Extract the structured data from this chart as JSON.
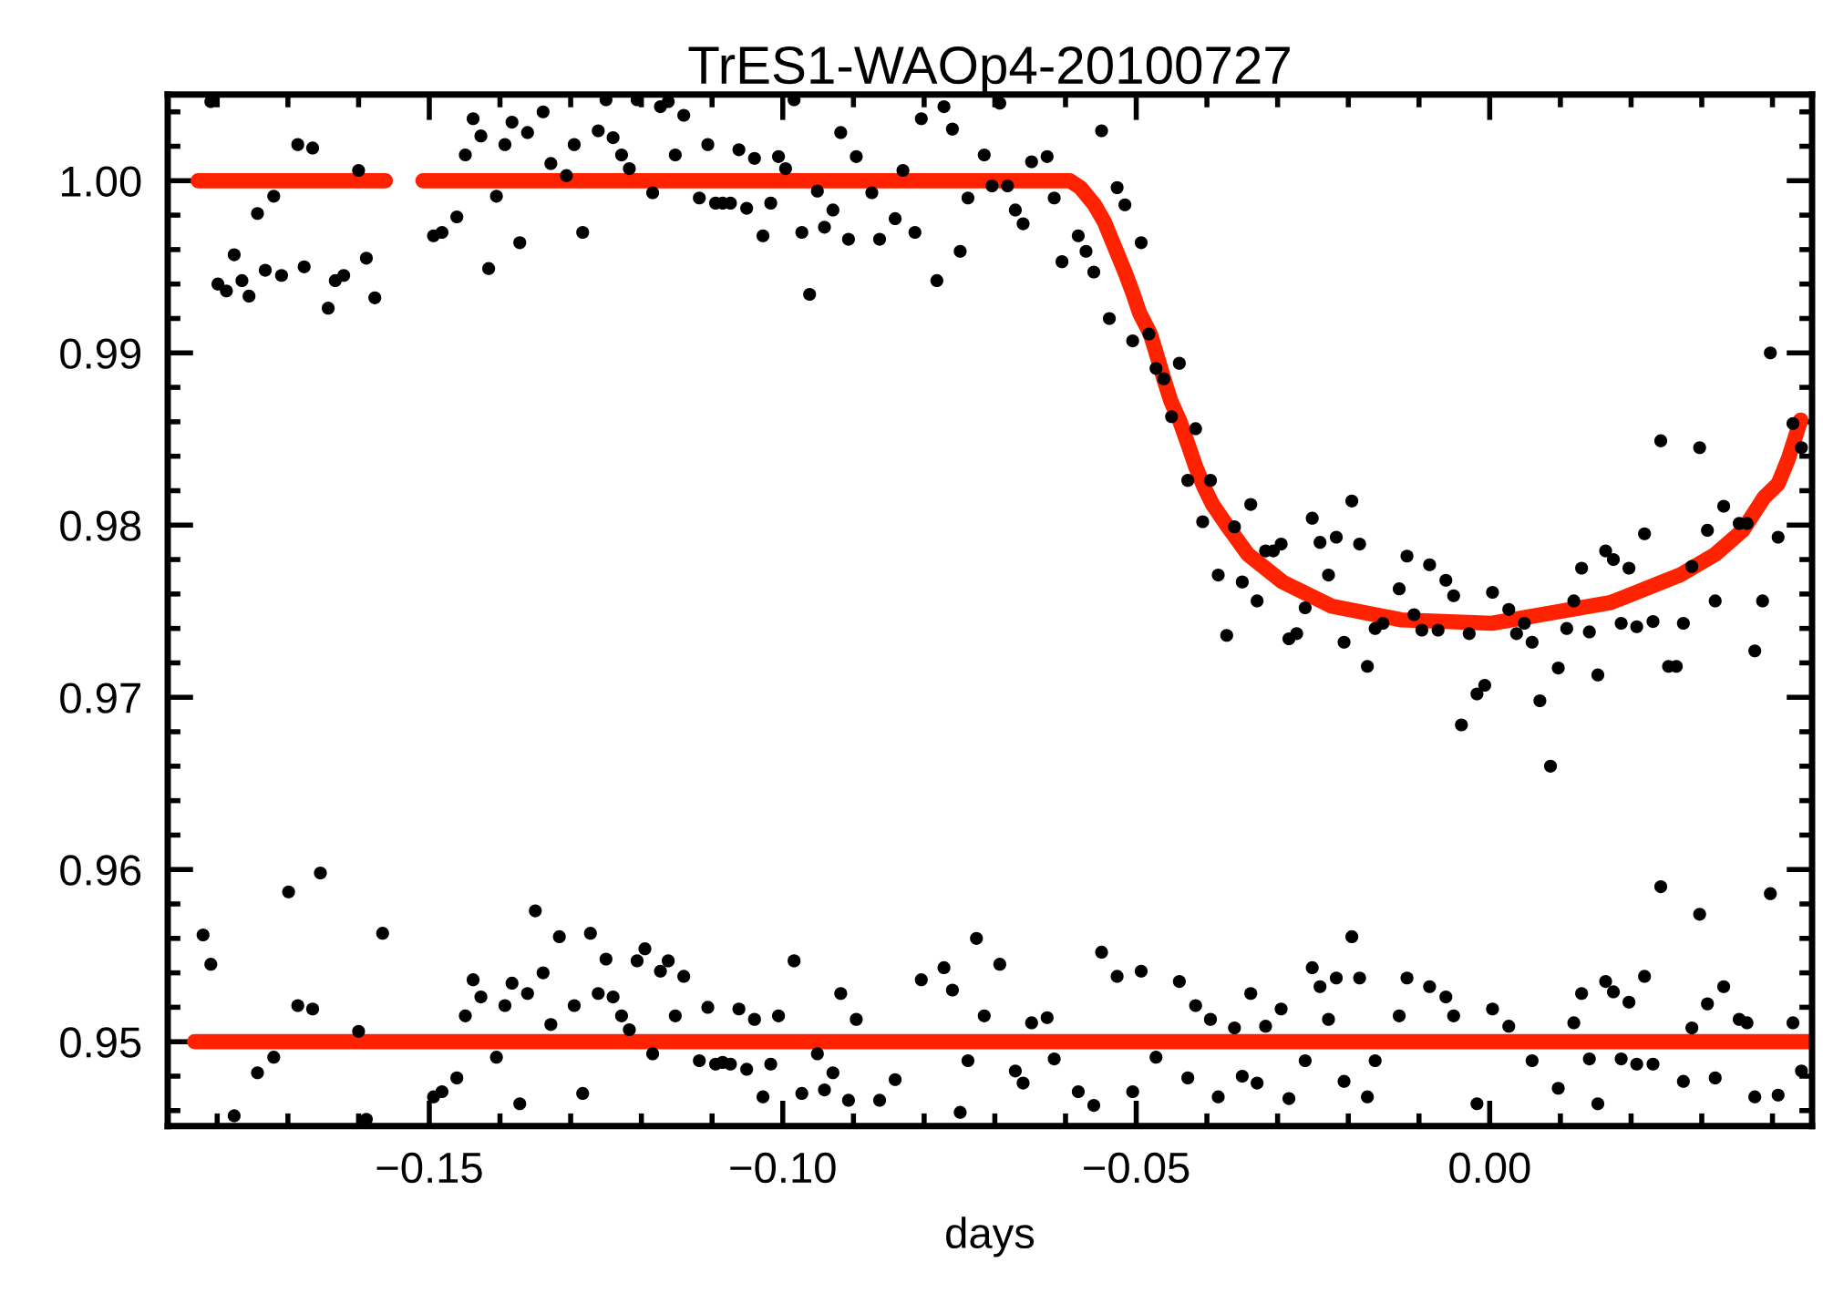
{
  "chart_data": {
    "type": "scatter",
    "title": "TrES1-WAOp4-20100727",
    "xlabel": "days",
    "xlim": [
      -0.187,
      0.0456
    ],
    "ylim": [
      0.9451,
      1.005
    ],
    "xticks": [
      {
        "value": -0.18,
        "label": null
      },
      {
        "value": -0.17,
        "label": null
      },
      {
        "value": -0.16,
        "label": null
      },
      {
        "value": -0.15,
        "label": "−0.15"
      },
      {
        "value": -0.14,
        "label": null
      },
      {
        "value": -0.13,
        "label": null
      },
      {
        "value": -0.12,
        "label": null
      },
      {
        "value": -0.11,
        "label": null
      },
      {
        "value": -0.1,
        "label": "−0.10"
      },
      {
        "value": -0.09,
        "label": null
      },
      {
        "value": -0.08,
        "label": null
      },
      {
        "value": -0.07,
        "label": null
      },
      {
        "value": -0.06,
        "label": null
      },
      {
        "value": -0.05,
        "label": "−0.05"
      },
      {
        "value": -0.04,
        "label": null
      },
      {
        "value": -0.03,
        "label": null
      },
      {
        "value": -0.02,
        "label": null
      },
      {
        "value": -0.01,
        "label": null
      },
      {
        "value": 0.0,
        "label": "0.00"
      },
      {
        "value": 0.01,
        "label": null
      },
      {
        "value": 0.02,
        "label": null
      },
      {
        "value": 0.03,
        "label": null
      },
      {
        "value": 0.04,
        "label": null
      }
    ],
    "yticks": [
      {
        "value": 0.946,
        "label": null
      },
      {
        "value": 0.948,
        "label": null
      },
      {
        "value": 0.95,
        "label": "0.95"
      },
      {
        "value": 0.952,
        "label": null
      },
      {
        "value": 0.954,
        "label": null
      },
      {
        "value": 0.956,
        "label": null
      },
      {
        "value": 0.958,
        "label": null
      },
      {
        "value": 0.96,
        "label": "0.96"
      },
      {
        "value": 0.962,
        "label": null
      },
      {
        "value": 0.964,
        "label": null
      },
      {
        "value": 0.966,
        "label": null
      },
      {
        "value": 0.968,
        "label": null
      },
      {
        "value": 0.97,
        "label": "0.97"
      },
      {
        "value": 0.972,
        "label": null
      },
      {
        "value": 0.974,
        "label": null
      },
      {
        "value": 0.976,
        "label": null
      },
      {
        "value": 0.978,
        "label": null
      },
      {
        "value": 0.98,
        "label": "0.98"
      },
      {
        "value": 0.982,
        "label": null
      },
      {
        "value": 0.984,
        "label": null
      },
      {
        "value": 0.986,
        "label": null
      },
      {
        "value": 0.988,
        "label": null
      },
      {
        "value": 0.99,
        "label": "0.99"
      },
      {
        "value": 0.992,
        "label": null
      },
      {
        "value": 0.994,
        "label": null
      },
      {
        "value": 0.996,
        "label": null
      },
      {
        "value": 0.998,
        "label": null
      },
      {
        "value": 1.0,
        "label": "1.00"
      },
      {
        "value": 1.002,
        "label": null
      },
      {
        "value": 1.004,
        "label": null
      }
    ],
    "grid": false,
    "series": [
      {
        "color": "#000000",
        "marker": "circle",
        "x": [
          -0.1809,
          -0.1799,
          -0.1787,
          -0.1776,
          -0.1765,
          -0.1755,
          -0.1743,
          -0.1732,
          -0.172,
          -0.1709,
          -0.1686,
          -0.1677,
          -0.1665,
          -0.1643,
          -0.1633,
          -0.1621,
          -0.16,
          -0.1589,
          -0.1577,
          -0.1494,
          -0.1482,
          -0.1461,
          -0.1449,
          -0.1438,
          -0.1427,
          -0.1416,
          -0.1405,
          -0.1393,
          -0.1383,
          -0.1372,
          -0.1361,
          -0.1339,
          -0.1328,
          -0.1306,
          -0.1295,
          -0.1283,
          -0.1261,
          -0.125,
          -0.124,
          -0.1228,
          -0.1217,
          -0.1206,
          -0.1184,
          -0.1173,
          -0.1162,
          -0.1152,
          -0.114,
          -0.1118,
          -0.1106,
          -0.1095,
          -0.1085,
          -0.1074,
          -0.1062,
          -0.1051,
          -0.104,
          -0.1028,
          -0.1017,
          -0.1006,
          -0.0996,
          -0.0984,
          -0.0973,
          -0.0962,
          -0.0951,
          -0.0941,
          -0.0929,
          -0.0918,
          -0.0907,
          -0.0896,
          -0.0874,
          -0.0863,
          -0.0841,
          -0.083,
          -0.0813,
          -0.0804,
          -0.0782,
          -0.0772,
          -0.076,
          -0.0749,
          -0.0738,
          -0.0715,
          -0.0704,
          -0.0693,
          -0.0682,
          -0.0671,
          -0.066,
          -0.0648,
          -0.0626,
          -0.0616,
          -0.0605,
          -0.0582,
          -0.0571,
          -0.056,
          -0.0549,
          -0.0538,
          -0.0527,
          -0.0516,
          -0.0505,
          -0.0493,
          -0.0482,
          -0.0472,
          -0.0461,
          -0.045,
          -0.0439,
          -0.0427,
          -0.0416,
          -0.0406,
          -0.0395,
          -0.0384,
          -0.0372,
          -0.0361,
          -0.035,
          -0.0338,
          -0.0329,
          -0.0317,
          -0.0306,
          -0.0295,
          -0.0284,
          -0.0273,
          -0.0261,
          -0.0251,
          -0.024,
          -0.0228,
          -0.0217,
          -0.0206,
          -0.0195,
          -0.0184,
          -0.0173,
          -0.0162,
          -0.0151,
          -0.0128,
          -0.0117,
          -0.0107,
          -0.0096,
          -0.0085,
          -0.0073,
          -0.0062,
          -0.0051,
          -0.004,
          -0.0029,
          -0.0018,
          -0.0007,
          0.0004,
          0.0027,
          0.0038,
          0.0049,
          0.006,
          0.0071,
          0.0086,
          0.0097,
          0.0109,
          0.0119,
          0.013,
          0.0141,
          0.0153,
          0.0164,
          0.0175,
          0.0186,
          0.0197,
          0.0208,
          0.0219,
          0.0231,
          0.0242,
          0.0253,
          0.0264,
          0.0274,
          0.0286,
          0.0297,
          0.0308,
          0.0319,
          0.0331,
          0.0353,
          0.0364,
          0.0375,
          0.0386,
          0.0397,
          0.0408,
          0.0429,
          0.0441
        ],
        "values": [
          1.0046,
          0.994,
          0.9936,
          0.9957,
          0.9942,
          0.9933,
          0.9981,
          0.9948,
          0.9991,
          0.9945,
          1.0021,
          0.995,
          1.0019,
          0.9926,
          0.9942,
          0.9945,
          1.0006,
          0.9955,
          0.9932,
          0.9968,
          0.997,
          0.9979,
          1.0015,
          1.0036,
          1.0026,
          0.9949,
          0.9991,
          1.0021,
          1.0034,
          0.9964,
          1.0028,
          1.004,
          1.001,
          1.0003,
          1.0021,
          0.997,
          1.0029,
          1.0047,
          1.0025,
          1.0015,
          1.0007,
          1.0047,
          0.9993,
          1.0043,
          1.0046,
          1.0015,
          1.0038,
          0.999,
          1.0021,
          0.9987,
          0.9987,
          0.9987,
          1.0018,
          0.9984,
          1.0013,
          0.9968,
          0.9987,
          1.0014,
          1.0007,
          1.0047,
          0.997,
          0.9934,
          0.9994,
          0.9973,
          0.9983,
          1.0028,
          0.9966,
          1.0014,
          0.9993,
          0.9966,
          0.9978,
          1.0006,
          0.997,
          1.0036,
          0.9942,
          1.0043,
          1.003,
          0.9959,
          0.999,
          1.0015,
          0.9997,
          1.0045,
          0.9997,
          0.9983,
          0.9975,
          1.0011,
          1.0014,
          0.999,
          0.9953,
          0.9968,
          0.9959,
          0.9947,
          1.0029,
          0.992,
          0.9996,
          0.9986,
          0.9907,
          0.9964,
          0.9911,
          0.9891,
          0.9885,
          0.9863,
          0.9894,
          0.9826,
          0.9856,
          0.9802,
          0.9826,
          0.9771,
          0.9736,
          0.9799,
          0.9767,
          0.9812,
          0.9756,
          0.9785,
          0.9785,
          0.9789,
          0.9734,
          0.9737,
          0.9752,
          0.9804,
          0.979,
          0.9771,
          0.9793,
          0.9732,
          0.9814,
          0.9789,
          0.9718,
          0.974,
          0.9743,
          0.9763,
          0.9782,
          0.9748,
          0.9739,
          0.9777,
          0.9739,
          0.9768,
          0.9759,
          0.9684,
          0.9737,
          0.9702,
          0.9707,
          0.9761,
          0.9751,
          0.9737,
          0.9743,
          0.9732,
          0.9698,
          0.966,
          0.9717,
          0.974,
          0.9756,
          0.9775,
          0.9738,
          0.9713,
          0.9785,
          0.978,
          0.9743,
          0.9775,
          0.9741,
          0.9795,
          0.9744,
          0.9849,
          0.9718,
          0.9718,
          0.9743,
          0.9776,
          0.9845,
          0.9797,
          0.9756,
          0.9811,
          0.9801,
          0.9801,
          0.9727,
          0.9756,
          0.99,
          0.9793,
          0.9859,
          0.9845
        ]
      },
      {
        "type": "line",
        "color": "#ff2200",
        "marker": "none",
        "x": [
          -0.1827,
          -0.1562,
          -0.1535,
          -0.1509,
          -0.0594,
          -0.0579,
          -0.0559,
          -0.0545,
          -0.0527,
          -0.0515,
          -0.0505,
          -0.0495,
          -0.048,
          -0.0471,
          -0.0461,
          -0.0451,
          -0.0438,
          -0.0426,
          -0.0416,
          -0.0404,
          -0.0392,
          -0.0372,
          -0.0342,
          -0.0293,
          -0.0224,
          -0.0125,
          0.0003,
          0.0171,
          0.0269,
          0.0319,
          0.0358,
          0.0388,
          0.0408,
          0.0422,
          0.044
        ],
        "values": [
          1.0,
          1.0,
          null,
          1.0,
          1.0,
          0.9996,
          0.9986,
          0.9976,
          0.9958,
          0.9946,
          0.9935,
          0.9923,
          0.9911,
          0.9899,
          0.9885,
          0.9872,
          0.986,
          0.9846,
          0.9834,
          0.9822,
          0.9812,
          0.98,
          0.9783,
          0.9767,
          0.9753,
          0.9745,
          0.9743,
          0.9755,
          0.9771,
          0.9783,
          0.9797,
          0.9816,
          0.9824,
          0.9838,
          0.9861
        ]
      },
      {
        "color": "#000000",
        "marker": "circle",
        "x": [
          -0.182,
          -0.1809,
          -0.1776,
          -0.1743,
          -0.172,
          -0.1699,
          -0.1686,
          -0.1665,
          -0.1654,
          -0.16,
          -0.1589,
          -0.1566,
          -0.1494,
          -0.1482,
          -0.1461,
          -0.1449,
          -0.1438,
          -0.1427,
          -0.1405,
          -0.1393,
          -0.1383,
          -0.1372,
          -0.1361,
          -0.135,
          -0.1339,
          -0.1328,
          -0.1316,
          -0.1295,
          -0.1283,
          -0.1272,
          -0.1261,
          -0.125,
          -0.124,
          -0.1228,
          -0.1217,
          -0.1206,
          -0.1195,
          -0.1184,
          -0.1173,
          -0.1162,
          -0.1152,
          -0.114,
          -0.1118,
          -0.1106,
          -0.1095,
          -0.1085,
          -0.1074,
          -0.1062,
          -0.1051,
          -0.104,
          -0.1028,
          -0.1017,
          -0.1006,
          -0.0984,
          -0.0973,
          -0.0951,
          -0.0941,
          -0.0929,
          -0.0918,
          -0.0907,
          -0.0896,
          -0.0863,
          -0.0841,
          -0.0804,
          -0.0772,
          -0.076,
          -0.0749,
          -0.0738,
          -0.0726,
          -0.0715,
          -0.0693,
          -0.0671,
          -0.066,
          -0.0648,
          -0.0626,
          -0.0616,
          -0.0582,
          -0.056,
          -0.0549,
          -0.0527,
          -0.0505,
          -0.0493,
          -0.0472,
          -0.0439,
          -0.0427,
          -0.0416,
          -0.0395,
          -0.0384,
          -0.0361,
          -0.035,
          -0.0338,
          -0.0329,
          -0.0317,
          -0.0295,
          -0.0284,
          -0.0261,
          -0.0251,
          -0.024,
          -0.0228,
          -0.0217,
          -0.0206,
          -0.0195,
          -0.0184,
          -0.0173,
          -0.0162,
          -0.0128,
          -0.0117,
          -0.0085,
          -0.0062,
          -0.0051,
          -0.0018,
          0.0004,
          0.0027,
          0.006,
          0.0097,
          0.0119,
          0.013,
          0.0141,
          0.0153,
          0.0164,
          0.0175,
          0.0186,
          0.0197,
          0.0208,
          0.0219,
          0.0231,
          0.0242,
          0.0274,
          0.0286,
          0.0297,
          0.0308,
          0.0319,
          0.0331,
          0.0353,
          0.0364,
          0.0375,
          0.0397,
          0.0408,
          0.0429,
          0.0441
        ],
        "values": [
          0.9562,
          0.9545,
          0.9457,
          0.9482,
          0.9491,
          0.9587,
          0.9521,
          0.9519,
          0.9598,
          0.9506,
          0.9455,
          0.9563,
          0.9468,
          0.9471,
          0.9479,
          0.9515,
          0.9536,
          0.9526,
          0.9491,
          0.9521,
          0.9534,
          0.9464,
          0.9528,
          0.9576,
          0.954,
          0.951,
          0.9561,
          0.9521,
          0.947,
          0.9563,
          0.9528,
          0.9548,
          0.9526,
          0.9515,
          0.9507,
          0.9547,
          0.9554,
          0.9493,
          0.9541,
          0.9547,
          0.9515,
          0.9538,
          0.9489,
          0.952,
          0.9487,
          0.9488,
          0.9487,
          0.9519,
          0.9484,
          0.9513,
          0.9468,
          0.9487,
          0.9515,
          0.9547,
          0.947,
          0.9493,
          0.9472,
          0.9482,
          0.9528,
          0.9466,
          0.9513,
          0.9466,
          0.9478,
          0.9536,
          0.9543,
          0.953,
          0.9459,
          0.9489,
          0.956,
          0.9515,
          0.9545,
          0.9483,
          0.9476,
          0.9511,
          0.9514,
          0.949,
          0.9471,
          0.9463,
          0.9552,
          0.9538,
          0.9471,
          0.9541,
          0.9491,
          0.9535,
          0.9479,
          0.9521,
          0.9513,
          0.9468,
          0.9508,
          0.948,
          0.9528,
          0.9476,
          0.9509,
          0.9519,
          0.9467,
          0.9489,
          0.9543,
          0.9532,
          0.9513,
          0.9537,
          0.9477,
          0.9561,
          0.9537,
          0.9468,
          0.9489,
          0.9515,
          0.9537,
          0.9532,
          0.9526,
          0.9515,
          0.9464,
          0.9519,
          0.9509,
          0.9489,
          0.9473,
          0.9511,
          0.9528,
          0.949,
          0.9464,
          0.9535,
          0.9529,
          0.949,
          0.9523,
          0.9487,
          0.9538,
          0.9487,
          0.959,
          0.9477,
          0.9508,
          0.9574,
          0.9522,
          0.9479,
          0.9532,
          0.9513,
          0.9511,
          0.9468,
          0.9586,
          0.9469,
          0.9511,
          0.9483
        ]
      },
      {
        "type": "line",
        "color": "#ff2200",
        "marker": "none",
        "x": [
          -0.1832,
          0.0452
        ],
        "values": [
          0.95,
          0.95
        ]
      }
    ]
  }
}
